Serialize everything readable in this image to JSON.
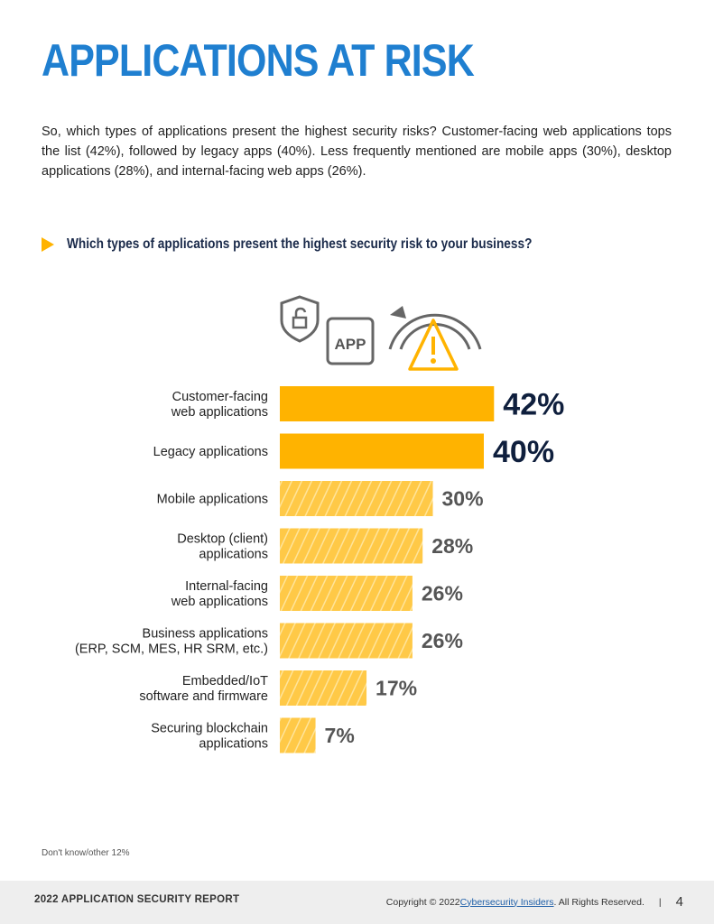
{
  "title": "APPLICATIONS AT RISK",
  "intro": "So, which types of applications present the highest security risks? Customer-facing web applications tops the list (42%), followed by legacy apps (40%). Less frequently mentioned are mobile apps (30%), desktop applications (28%), and internal-facing web apps (26%).",
  "question": "Which types of applications present the highest security risk to your business?",
  "icons": {
    "app_label": "APP",
    "names": [
      "shield-lock-icon",
      "app-icon",
      "gauge-warning-icon"
    ]
  },
  "colors": {
    "title": "#1f7fd0",
    "bar_solid": "#ffb300",
    "bar_hatched": "#ffc947",
    "hatch_line": "#ffe49a",
    "pct_big": "#0f1f3d",
    "pct_small": "#555555"
  },
  "chart_data": {
    "type": "bar",
    "orientation": "horizontal",
    "title": "Which types of applications present the highest security risk to your business?",
    "categories": [
      [
        "Customer-facing",
        "web applications"
      ],
      [
        "Legacy applications"
      ],
      [
        "Mobile applications"
      ],
      [
        "Desktop (client)",
        "applications"
      ],
      [
        "Internal-facing",
        "web applications"
      ],
      [
        "Business applications",
        "(ERP, SCM, MES, HR SRM, etc.)"
      ],
      [
        "Embedded/IoT",
        "software and firmware"
      ],
      [
        "Securing blockchain",
        "applications"
      ]
    ],
    "values": [
      42,
      40,
      30,
      28,
      26,
      26,
      17,
      7
    ],
    "labels": [
      "42%",
      "40%",
      "30%",
      "28%",
      "26%",
      "26%",
      "17%",
      "7%"
    ],
    "highlighted": [
      true,
      true,
      false,
      false,
      false,
      false,
      false,
      false
    ],
    "unit": "%",
    "xlim": [
      0,
      100
    ]
  },
  "footnote": "Don't know/other 12%",
  "footer": {
    "report": "2022 APPLICATION SECURITY REPORT",
    "copyright_prefix": "Copyright © 2022 ",
    "link": "Cybersecurity Insiders",
    "copyright_suffix": ". All Rights Reserved.",
    "separator": "|",
    "page": "4"
  }
}
